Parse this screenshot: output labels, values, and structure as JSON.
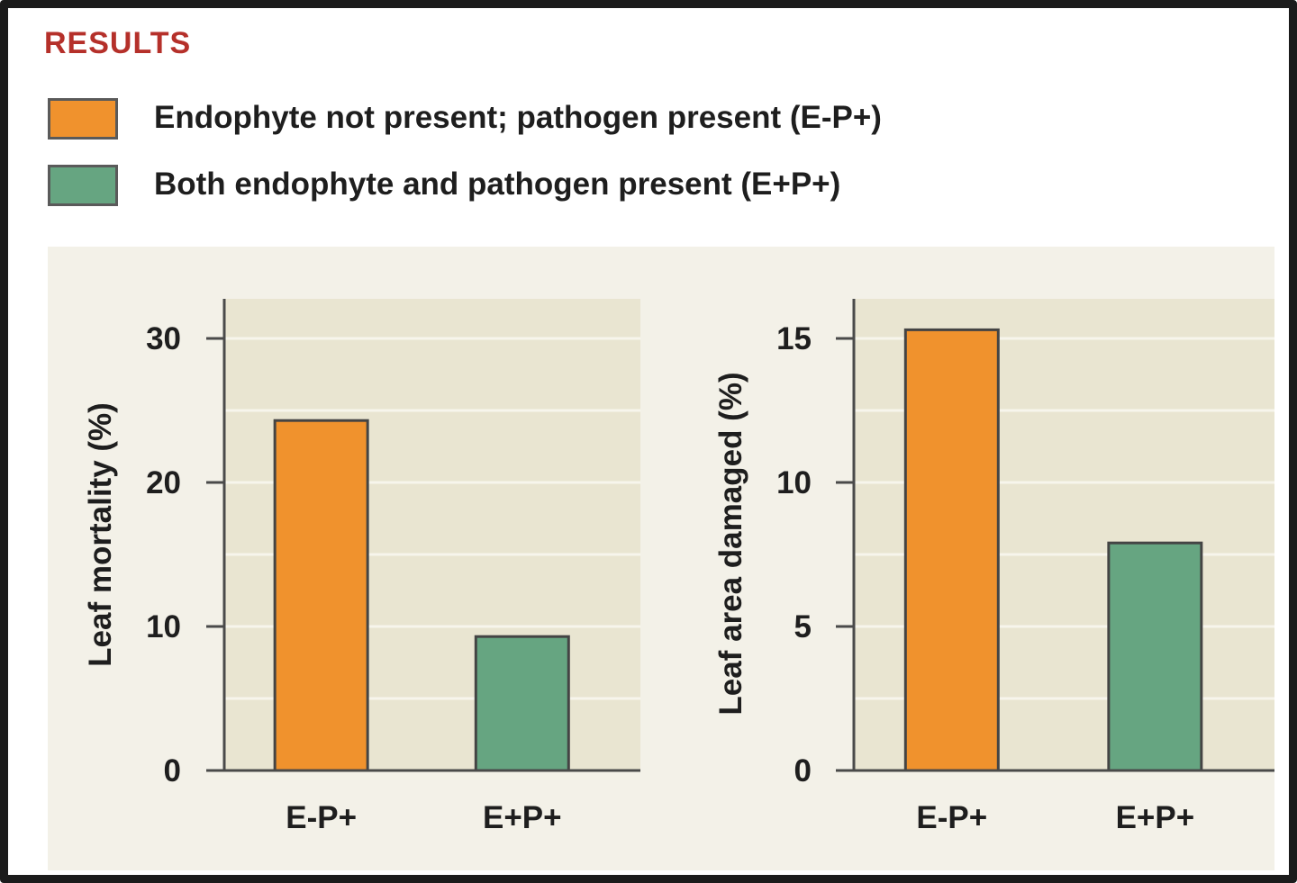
{
  "heading": "RESULTS",
  "legend": [
    {
      "label": "Endophyte not present; pathogen present (E-P+)",
      "color": "#f0922d"
    },
    {
      "label": "Both endophyte and pathogen present (E+P+)",
      "color": "#66a581"
    }
  ],
  "colors": {
    "plot_bg": "#e9e5d1",
    "panel_bg": "#f3f1e8",
    "grid": "#f7f5ec",
    "axis": "#4a4a4a",
    "bar_edge": "#444444"
  },
  "chart_data": [
    {
      "type": "bar",
      "ylabel": "Leaf mortality (%)",
      "xlabel": "",
      "categories": [
        "E-P+",
        "E+P+"
      ],
      "values": [
        24.3,
        9.3
      ],
      "colors": [
        "#f0922d",
        "#66a581"
      ],
      "ylim": [
        0,
        30
      ],
      "yticks": [
        0,
        10,
        20,
        30
      ],
      "ytick_labels": [
        "0",
        "10",
        "20",
        "30"
      ],
      "grid": true
    },
    {
      "type": "bar",
      "ylabel": "Leaf area damaged (%)",
      "xlabel": "",
      "categories": [
        "E-P+",
        "E+P+"
      ],
      "values": [
        15.3,
        7.9
      ],
      "colors": [
        "#f0922d",
        "#66a581"
      ],
      "ylim": [
        0,
        15
      ],
      "yticks": [
        0,
        5,
        10,
        15
      ],
      "ytick_labels": [
        "0",
        "5",
        "10",
        "15"
      ],
      "grid": true
    }
  ]
}
